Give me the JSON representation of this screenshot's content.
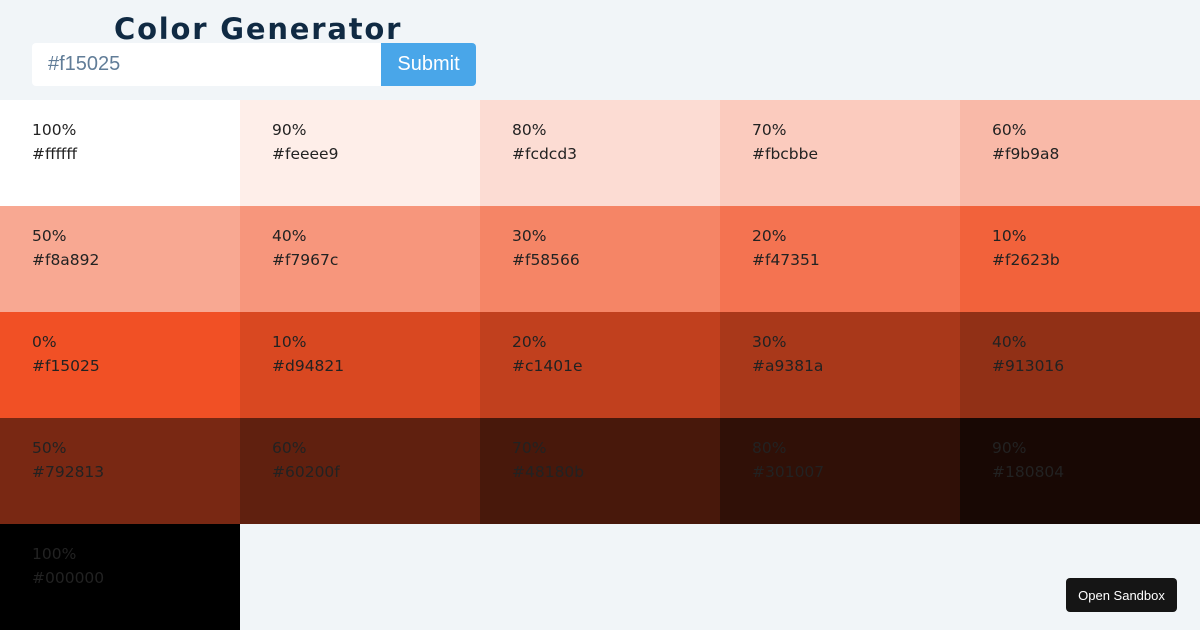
{
  "header": {
    "title": "Color Generator"
  },
  "form": {
    "input_value": "#f15025",
    "submit_label": "Submit"
  },
  "swatches": [
    {
      "percent": "100%",
      "hex": "#ffffff",
      "bg": "#ffffff",
      "text": "#222222"
    },
    {
      "percent": "90%",
      "hex": "#feeee9",
      "bg": "#feeee9",
      "text": "#222222"
    },
    {
      "percent": "80%",
      "hex": "#fcdcd3",
      "bg": "#fcdcd3",
      "text": "#222222"
    },
    {
      "percent": "70%",
      "hex": "#fbcbbe",
      "bg": "#fbcbbe",
      "text": "#222222"
    },
    {
      "percent": "60%",
      "hex": "#f9b9a8",
      "bg": "#f9b9a8",
      "text": "#222222"
    },
    {
      "percent": "50%",
      "hex": "#f8a892",
      "bg": "#f8a892",
      "text": "#222222"
    },
    {
      "percent": "40%",
      "hex": "#f7967c",
      "bg": "#f7967c",
      "text": "#222222"
    },
    {
      "percent": "30%",
      "hex": "#f58566",
      "bg": "#f58566",
      "text": "#222222"
    },
    {
      "percent": "20%",
      "hex": "#f47351",
      "bg": "#f47351",
      "text": "#222222"
    },
    {
      "percent": "10%",
      "hex": "#f2623b",
      "bg": "#f2623b",
      "text": "#222222"
    },
    {
      "percent": "0%",
      "hex": "#f15025",
      "bg": "#f15025",
      "text": "#222222"
    },
    {
      "percent": "10%",
      "hex": "#d94821",
      "bg": "#d94821",
      "text": "#222222"
    },
    {
      "percent": "20%",
      "hex": "#c1401e",
      "bg": "#c1401e",
      "text": "#222222"
    },
    {
      "percent": "30%",
      "hex": "#a9381a",
      "bg": "#a9381a",
      "text": "#222222"
    },
    {
      "percent": "40%",
      "hex": "#913016",
      "bg": "#913016",
      "text": "#222222"
    },
    {
      "percent": "50%",
      "hex": "#792813",
      "bg": "#792813",
      "text": "#222222"
    },
    {
      "percent": "60%",
      "hex": "#60200f",
      "bg": "#60200f",
      "text": "#222222"
    },
    {
      "percent": "70%",
      "hex": "#48180b",
      "bg": "#48180b",
      "text": "#222222"
    },
    {
      "percent": "80%",
      "hex": "#301007",
      "bg": "#301007",
      "text": "#222222"
    },
    {
      "percent": "90%",
      "hex": "#180804",
      "bg": "#180804",
      "text": "#222222"
    },
    {
      "percent": "100%",
      "hex": "#000000",
      "bg": "#000000",
      "text": "#222222"
    }
  ],
  "footer": {
    "sandbox_label": "Open Sandbox"
  },
  "colors": {
    "page_bg": "#f1f5f8",
    "title": "#102a43",
    "submit_bg": "#49a6e9",
    "sandbox_bg": "#151515"
  }
}
